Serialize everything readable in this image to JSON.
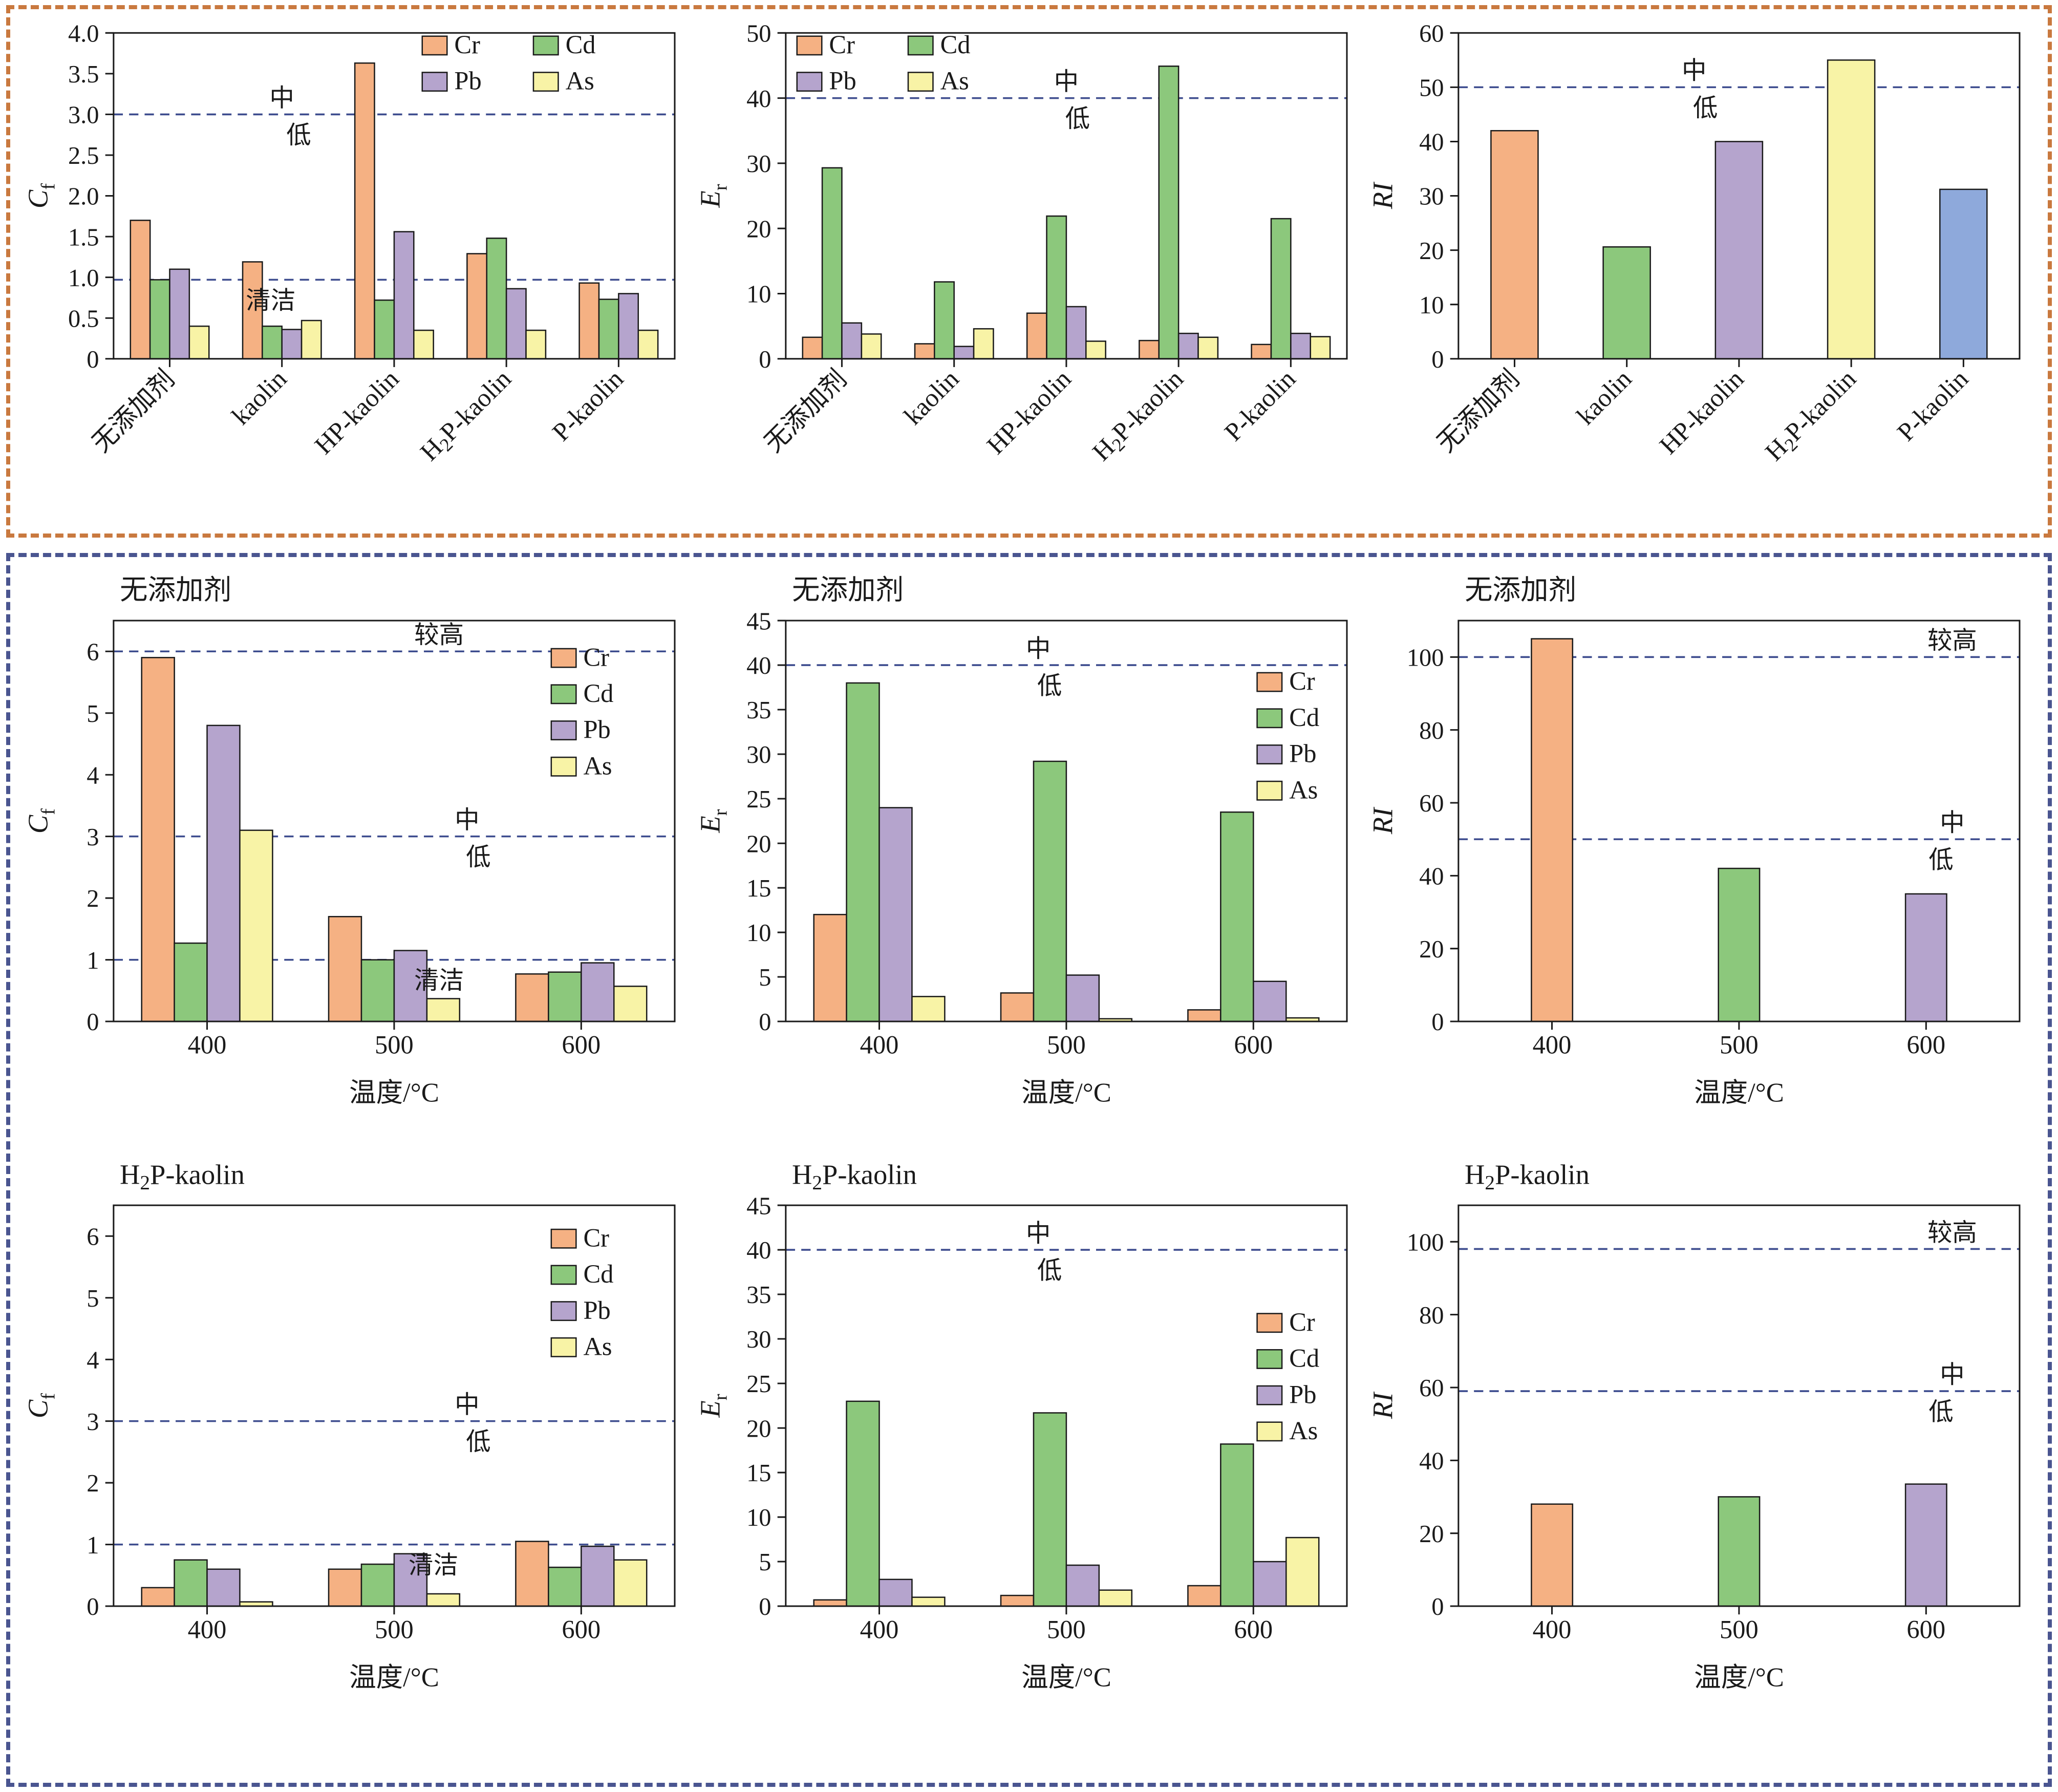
{
  "figure": {
    "colors": {
      "Cr": "#F5B183",
      "Cd": "#8CC87C",
      "Pb": "#B5A4CD",
      "As": "#F8F3A6",
      "blue": "#8EA9DB",
      "threshold_line": "#3D4C8E",
      "axis": "#1a1a1a",
      "top_panel_border": "#C9793F",
      "bottom_panel_border": "#4A5590"
    },
    "series_names": [
      "Cr",
      "Cd",
      "Pb",
      "As"
    ]
  },
  "chart_data": [
    {
      "id": "cf-by-additive",
      "type": "bar",
      "title": "",
      "xlabel": "",
      "ylabel": {
        "main": "C",
        "sub": "f"
      },
      "categories": [
        "无添加剂",
        "kaolin",
        "HP-kaolin",
        "H₂P-kaolin",
        "P-kaolin"
      ],
      "rotate_xticks": true,
      "series": [
        {
          "name": "Cr",
          "color": "#F5B183",
          "values": [
            1.7,
            1.19,
            3.63,
            1.29,
            0.93
          ]
        },
        {
          "name": "Cd",
          "color": "#8CC87C",
          "values": [
            0.97,
            0.4,
            0.72,
            1.48,
            0.73
          ]
        },
        {
          "name": "Pb",
          "color": "#B5A4CD",
          "values": [
            1.1,
            0.36,
            1.56,
            0.86,
            0.8
          ]
        },
        {
          "name": "As",
          "color": "#F8F3A6",
          "values": [
            0.4,
            0.47,
            0.35,
            0.35,
            0.35
          ]
        }
      ],
      "ylim": [
        0,
        4
      ],
      "yticks": [
        0,
        0.5,
        1.0,
        1.5,
        2.0,
        2.5,
        3.0,
        3.5,
        4.0
      ],
      "ytick_decimals": 1,
      "thresholds": [
        {
          "y": 3.0,
          "labels": [
            {
              "text": "中",
              "xfrac": 0.3,
              "pos": "above"
            },
            {
              "text": "低",
              "xfrac": 0.33,
              "pos": "below"
            }
          ]
        },
        {
          "y": 0.97,
          "labels": [
            {
              "text": "清洁",
              "xfrac": 0.28,
              "pos": "below"
            }
          ]
        }
      ],
      "legend": {
        "x": 0.55,
        "y": 0.01,
        "cols": 2
      }
    },
    {
      "id": "er-by-additive",
      "type": "bar",
      "title": "",
      "xlabel": "",
      "ylabel": {
        "main": "E",
        "sub": "r"
      },
      "categories": [
        "无添加剂",
        "kaolin",
        "HP-kaolin",
        "H₂P-kaolin",
        "P-kaolin"
      ],
      "rotate_xticks": true,
      "series": [
        {
          "name": "Cr",
          "color": "#F5B183",
          "values": [
            3.3,
            2.3,
            7.0,
            2.8,
            2.2
          ]
        },
        {
          "name": "Cd",
          "color": "#8CC87C",
          "values": [
            29.3,
            11.8,
            21.9,
            44.9,
            21.5
          ]
        },
        {
          "name": "Pb",
          "color": "#B5A4CD",
          "values": [
            5.5,
            1.9,
            8.0,
            3.9,
            3.9
          ]
        },
        {
          "name": "As",
          "color": "#F8F3A6",
          "values": [
            3.8,
            4.6,
            2.7,
            3.3,
            3.4
          ]
        }
      ],
      "ylim": [
        0,
        50
      ],
      "yticks": [
        0,
        10,
        20,
        30,
        40,
        50
      ],
      "ytick_decimals": 0,
      "thresholds": [
        {
          "y": 40,
          "labels": [
            {
              "text": "中",
              "xfrac": 0.5,
              "pos": "above"
            },
            {
              "text": "低",
              "xfrac": 0.52,
              "pos": "below"
            }
          ]
        }
      ],
      "legend": {
        "x": 0.02,
        "y": 0.01,
        "cols": 2
      }
    },
    {
      "id": "ri-by-additive",
      "type": "bar",
      "title": "",
      "xlabel": "",
      "ylabel": {
        "main": "RI",
        "sub": ""
      },
      "categories": [
        "无添加剂",
        "kaolin",
        "HP-kaolin",
        "H₂P-kaolin",
        "P-kaolin"
      ],
      "rotate_xticks": true,
      "values": [
        42,
        20.6,
        40,
        55,
        31.2
      ],
      "bar_colors": [
        "#F5B183",
        "#8CC87C",
        "#B5A4CD",
        "#F8F3A6",
        "#8EA9DB"
      ],
      "bar_frac": 0.42,
      "ylim": [
        0,
        60
      ],
      "yticks": [
        0,
        10,
        20,
        30,
        40,
        50,
        60
      ],
      "ytick_decimals": 0,
      "thresholds": [
        {
          "y": 50,
          "labels": [
            {
              "text": "中",
              "xfrac": 0.42,
              "pos": "above"
            },
            {
              "text": "低",
              "xfrac": 0.44,
              "pos": "below"
            }
          ]
        }
      ],
      "legend": null
    },
    {
      "id": "cf-none-temp",
      "type": "bar",
      "title": "无添加剂",
      "xlabel": "温度/°C",
      "ylabel": {
        "main": "C",
        "sub": "f"
      },
      "categories": [
        "400",
        "500",
        "600"
      ],
      "rotate_xticks": false,
      "series": [
        {
          "name": "Cr",
          "color": "#F5B183",
          "values": [
            5.9,
            1.7,
            0.77
          ]
        },
        {
          "name": "Cd",
          "color": "#8CC87C",
          "values": [
            1.27,
            1.0,
            0.8
          ]
        },
        {
          "name": "Pb",
          "color": "#B5A4CD",
          "values": [
            4.8,
            1.15,
            0.95
          ]
        },
        {
          "name": "As",
          "color": "#F8F3A6",
          "values": [
            3.1,
            0.37,
            0.57
          ]
        }
      ],
      "ylim": [
        0,
        6.5
      ],
      "yticks": [
        0,
        1,
        2,
        3,
        4,
        5,
        6
      ],
      "ytick_decimals": 0,
      "thresholds": [
        {
          "y": 6.0,
          "labels": [
            {
              "text": "较高",
              "xfrac": 0.58,
              "pos": "above"
            }
          ]
        },
        {
          "y": 3.0,
          "labels": [
            {
              "text": "中",
              "xfrac": 0.63,
              "pos": "above"
            },
            {
              "text": "低",
              "xfrac": 0.65,
              "pos": "below"
            }
          ]
        },
        {
          "y": 1.0,
          "labels": [
            {
              "text": "清洁",
              "xfrac": 0.58,
              "pos": "below"
            }
          ]
        }
      ],
      "legend": {
        "x": 0.78,
        "y": 0.07,
        "cols": 1
      }
    },
    {
      "id": "er-none-temp",
      "type": "bar",
      "title": "无添加剂",
      "xlabel": "温度/°C",
      "ylabel": {
        "main": "E",
        "sub": "r"
      },
      "categories": [
        "400",
        "500",
        "600"
      ],
      "rotate_xticks": false,
      "series": [
        {
          "name": "Cr",
          "color": "#F5B183",
          "values": [
            12.0,
            3.2,
            1.3
          ]
        },
        {
          "name": "Cd",
          "color": "#8CC87C",
          "values": [
            38.0,
            29.2,
            23.5
          ]
        },
        {
          "name": "Pb",
          "color": "#B5A4CD",
          "values": [
            24.0,
            5.2,
            4.5
          ]
        },
        {
          "name": "As",
          "color": "#F8F3A6",
          "values": [
            2.8,
            0.3,
            0.4
          ]
        }
      ],
      "ylim": [
        0,
        45
      ],
      "yticks": [
        0,
        5,
        10,
        15,
        20,
        25,
        30,
        35,
        40,
        45
      ],
      "ytick_decimals": 0,
      "thresholds": [
        {
          "y": 40,
          "labels": [
            {
              "text": "中",
              "xfrac": 0.45,
              "pos": "above"
            },
            {
              "text": "低",
              "xfrac": 0.47,
              "pos": "below"
            }
          ]
        }
      ],
      "legend": {
        "x": 0.84,
        "y": 0.13,
        "cols": 1
      }
    },
    {
      "id": "ri-none-temp",
      "type": "bar",
      "title": "无添加剂",
      "xlabel": "温度/°C",
      "ylabel": {
        "main": "RI",
        "sub": ""
      },
      "categories": [
        "400",
        "500",
        "600"
      ],
      "rotate_xticks": false,
      "values": [
        105,
        42,
        35
      ],
      "bar_colors": [
        "#F5B183",
        "#8CC87C",
        "#B5A4CD"
      ],
      "bar_frac": 0.22,
      "ylim": [
        0,
        110
      ],
      "yticks": [
        0,
        20,
        40,
        60,
        80,
        100
      ],
      "ytick_decimals": 0,
      "thresholds": [
        {
          "y": 100,
          "labels": [
            {
              "text": "较高",
              "xfrac": 0.88,
              "pos": "above"
            }
          ]
        },
        {
          "y": 50,
          "labels": [
            {
              "text": "中",
              "xfrac": 0.88,
              "pos": "above"
            },
            {
              "text": "低",
              "xfrac": 0.86,
              "pos": "below"
            }
          ]
        }
      ],
      "legend": null
    },
    {
      "id": "cf-h2p-temp",
      "type": "bar",
      "title": "H₂P-kaolin",
      "xlabel": "温度/°C",
      "ylabel": {
        "main": "C",
        "sub": "f"
      },
      "categories": [
        "400",
        "500",
        "600"
      ],
      "rotate_xticks": false,
      "series": [
        {
          "name": "Cr",
          "color": "#F5B183",
          "values": [
            0.3,
            0.6,
            1.05
          ]
        },
        {
          "name": "Cd",
          "color": "#8CC87C",
          "values": [
            0.75,
            0.68,
            0.63
          ]
        },
        {
          "name": "Pb",
          "color": "#B5A4CD",
          "values": [
            0.6,
            0.85,
            0.97
          ]
        },
        {
          "name": "As",
          "color": "#F8F3A6",
          "values": [
            0.07,
            0.2,
            0.75
          ]
        }
      ],
      "ylim": [
        0,
        6.5
      ],
      "yticks": [
        0,
        1,
        2,
        3,
        4,
        5,
        6
      ],
      "ytick_decimals": 0,
      "thresholds": [
        {
          "y": 3.0,
          "labels": [
            {
              "text": "中",
              "xfrac": 0.63,
              "pos": "above"
            },
            {
              "text": "低",
              "xfrac": 0.65,
              "pos": "below"
            }
          ]
        },
        {
          "y": 1.0,
          "labels": [
            {
              "text": "清洁",
              "xfrac": 0.57,
              "pos": "below"
            }
          ]
        }
      ],
      "legend": {
        "x": 0.78,
        "y": 0.06,
        "cols": 1
      }
    },
    {
      "id": "er-h2p-temp",
      "type": "bar",
      "title": "H₂P-kaolin",
      "xlabel": "温度/°C",
      "ylabel": {
        "main": "E",
        "sub": "r"
      },
      "categories": [
        "400",
        "500",
        "600"
      ],
      "rotate_xticks": false,
      "series": [
        {
          "name": "Cr",
          "color": "#F5B183",
          "values": [
            0.7,
            1.2,
            2.3
          ]
        },
        {
          "name": "Cd",
          "color": "#8CC87C",
          "values": [
            23.0,
            21.7,
            18.2
          ]
        },
        {
          "name": "Pb",
          "color": "#B5A4CD",
          "values": [
            3.0,
            4.6,
            5.0
          ]
        },
        {
          "name": "As",
          "color": "#F8F3A6",
          "values": [
            1.0,
            1.8,
            7.7
          ]
        }
      ],
      "ylim": [
        0,
        45
      ],
      "yticks": [
        0,
        5,
        10,
        15,
        20,
        25,
        30,
        35,
        40,
        45
      ],
      "ytick_decimals": 0,
      "thresholds": [
        {
          "y": 40,
          "labels": [
            {
              "text": "中",
              "xfrac": 0.45,
              "pos": "above"
            },
            {
              "text": "低",
              "xfrac": 0.47,
              "pos": "below"
            }
          ]
        }
      ],
      "legend": {
        "x": 0.84,
        "y": 0.27,
        "cols": 1
      }
    },
    {
      "id": "ri-h2p-temp",
      "type": "bar",
      "title": "H₂P-kaolin",
      "xlabel": "温度/°C",
      "ylabel": {
        "main": "RI",
        "sub": ""
      },
      "categories": [
        "400",
        "500",
        "600"
      ],
      "rotate_xticks": false,
      "values": [
        28,
        30,
        33.5
      ],
      "bar_colors": [
        "#F5B183",
        "#8CC87C",
        "#B5A4CD"
      ],
      "bar_frac": 0.22,
      "ylim": [
        0,
        110
      ],
      "yticks": [
        0,
        20,
        40,
        60,
        80,
        100
      ],
      "ytick_decimals": 0,
      "thresholds": [
        {
          "y": 98,
          "labels": [
            {
              "text": "较高",
              "xfrac": 0.88,
              "pos": "above"
            }
          ]
        },
        {
          "y": 59,
          "labels": [
            {
              "text": "中",
              "xfrac": 0.88,
              "pos": "above"
            },
            {
              "text": "低",
              "xfrac": 0.86,
              "pos": "below"
            }
          ]
        }
      ],
      "legend": null
    }
  ]
}
